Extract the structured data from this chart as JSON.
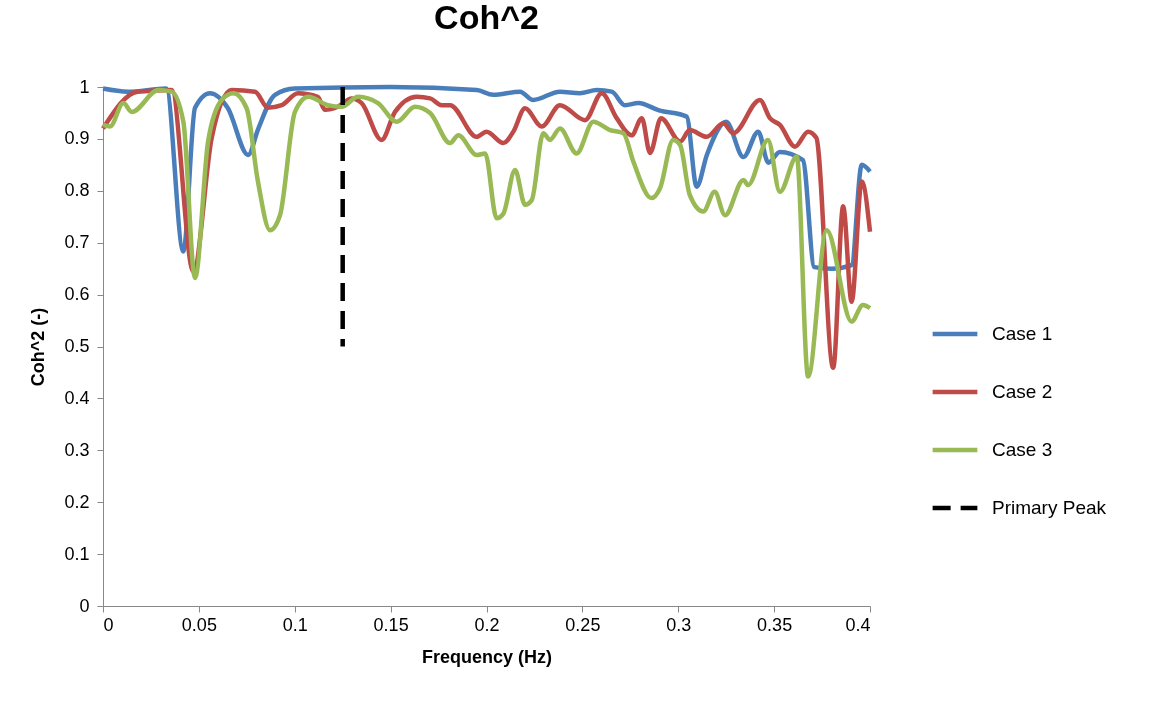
{
  "chart_data": {
    "type": "line",
    "title": "Coh^2",
    "xlabel": "Frequency (Hz)",
    "ylabel": "Coh^2 (-)",
    "xlim": [
      0,
      0.4
    ],
    "ylim": [
      0,
      1
    ],
    "xticks": [
      0,
      0.05,
      0.1,
      0.15,
      0.2,
      0.25,
      0.3,
      0.35,
      0.4
    ],
    "yticks": [
      0,
      0.1,
      0.2,
      0.3,
      0.4,
      0.5,
      0.6,
      0.7,
      0.8,
      0.9,
      1
    ],
    "legend": "right",
    "series": [
      {
        "name": "Case 1",
        "color": "#4a7ebb",
        "x": [
          0,
          0.013,
          0.033,
          0.0419,
          0.048,
          0.0558,
          0.065,
          0.0757,
          0.081,
          0.0897,
          0.1,
          0.15,
          0.1949,
          0.2034,
          0.2175,
          0.2243,
          0.2383,
          0.2487,
          0.2575,
          0.2653,
          0.2722,
          0.2792,
          0.29,
          0.3044,
          0.3096,
          0.315,
          0.325,
          0.334,
          0.3417,
          0.347,
          0.353,
          0.365,
          0.371,
          0.38,
          0.3904,
          0.3957,
          0.4
        ],
        "values": [
          0.997,
          0.991,
          0.997,
          0.683,
          0.96,
          0.988,
          0.96,
          0.869,
          0.92,
          0.985,
          0.997,
          1.0,
          0.994,
          0.985,
          0.991,
          0.975,
          0.991,
          0.988,
          0.994,
          0.991,
          0.965,
          0.969,
          0.955,
          0.943,
          0.808,
          0.87,
          0.933,
          0.865,
          0.914,
          0.854,
          0.875,
          0.859,
          0.653,
          0.65,
          0.657,
          0.85,
          0.837
        ]
      },
      {
        "name": "Case 2",
        "color": "#be4b48",
        "x": [
          0,
          0.018,
          0.0358,
          0.0471,
          0.0567,
          0.0671,
          0.0793,
          0.086,
          0.0932,
          0.1017,
          0.112,
          0.1158,
          0.1225,
          0.1297,
          0.1349,
          0.1453,
          0.1523,
          0.1636,
          0.1706,
          0.1766,
          0.181,
          0.1949,
          0.2,
          0.2088,
          0.214,
          0.2201,
          0.2288,
          0.2383,
          0.2514,
          0.2601,
          0.2679,
          0.2757,
          0.281,
          0.2853,
          0.291,
          0.301,
          0.306,
          0.3148,
          0.3235,
          0.3287,
          0.3426,
          0.3478,
          0.353,
          0.3609,
          0.3677,
          0.372,
          0.3808,
          0.386,
          0.3904,
          0.3957,
          0.4
        ],
        "values": [
          0.92,
          0.991,
          0.994,
          0.644,
          0.902,
          0.994,
          0.991,
          0.96,
          0.965,
          0.988,
          0.981,
          0.956,
          0.962,
          0.978,
          0.969,
          0.898,
          0.952,
          0.981,
          0.978,
          0.965,
          0.965,
          0.904,
          0.914,
          0.892,
          0.914,
          0.959,
          0.924,
          0.965,
          0.936,
          0.988,
          0.94,
          0.907,
          0.94,
          0.873,
          0.94,
          0.895,
          0.917,
          0.904,
          0.93,
          0.911,
          0.975,
          0.94,
          0.927,
          0.885,
          0.914,
          0.902,
          0.459,
          0.77,
          0.586,
          0.818,
          0.721
        ]
      },
      {
        "name": "Case 3",
        "color": "#98b954",
        "x": [
          0,
          0.0037,
          0.0106,
          0.015,
          0.0289,
          0.0358,
          0.0419,
          0.048,
          0.0548,
          0.0619,
          0.068,
          0.0749,
          0.0808,
          0.0871,
          0.0923,
          0.1001,
          0.1071,
          0.1173,
          0.1245,
          0.133,
          0.1434,
          0.1532,
          0.1627,
          0.1706,
          0.181,
          0.1853,
          0.1949,
          0.1993,
          0.2053,
          0.2088,
          0.2149,
          0.2201,
          0.2236,
          0.2296,
          0.2331,
          0.2383,
          0.247,
          0.2557,
          0.2644,
          0.2714,
          0.2766,
          0.286,
          0.2905,
          0.2973,
          0.301,
          0.306,
          0.313,
          0.319,
          0.3244,
          0.334,
          0.3364,
          0.3468,
          0.353,
          0.3618,
          0.3677,
          0.3774,
          0.3904,
          0.3963,
          0.4
        ],
        "values": [
          0.927,
          0.924,
          0.969,
          0.952,
          0.994,
          0.991,
          0.933,
          0.632,
          0.895,
          0.975,
          0.988,
          0.959,
          0.818,
          0.724,
          0.753,
          0.952,
          0.981,
          0.965,
          0.962,
          0.981,
          0.969,
          0.933,
          0.962,
          0.95,
          0.892,
          0.907,
          0.869,
          0.872,
          0.747,
          0.756,
          0.84,
          0.773,
          0.782,
          0.911,
          0.898,
          0.92,
          0.872,
          0.933,
          0.917,
          0.911,
          0.856,
          0.786,
          0.805,
          0.898,
          0.888,
          0.792,
          0.76,
          0.798,
          0.753,
          0.821,
          0.811,
          0.898,
          0.798,
          0.866,
          0.442,
          0.724,
          0.548,
          0.58,
          0.574
        ]
      },
      {
        "name": "Primary Peak",
        "color": "#000000",
        "line_style": "dashed",
        "x": [
          0.125,
          0.125
        ],
        "values": [
          1,
          0.5
        ]
      }
    ]
  }
}
